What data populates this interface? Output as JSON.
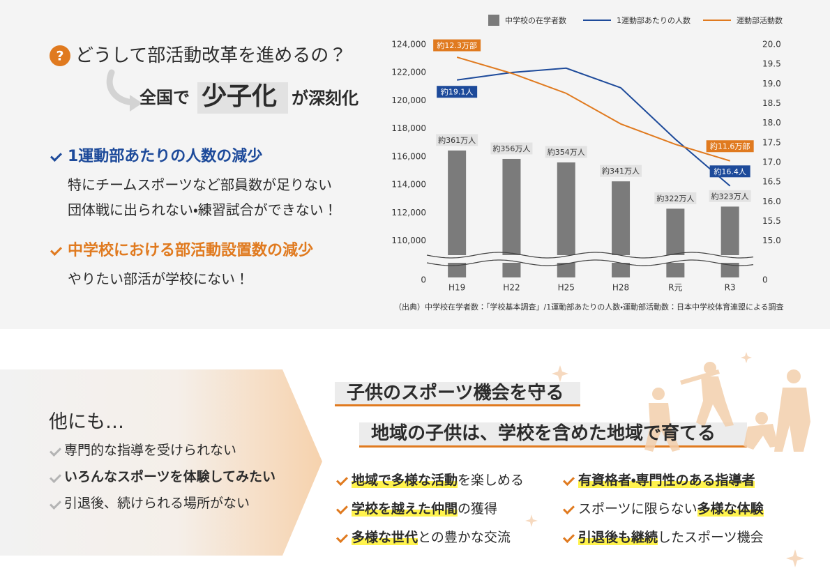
{
  "header": {
    "question_mark": "?",
    "question": "どうして部活動改革を進めるの？",
    "headline": {
      "before": "全国で",
      "emphasis": "少子化",
      "after": "が深刻化"
    }
  },
  "reasons": [
    {
      "title": "1運動部あたりの人数の減少",
      "color": "#1d4a9a",
      "lines": [
        "特にチームスポーツなど部員数が足りない",
        "団体戦に出られない・練習試合ができない！"
      ]
    },
    {
      "title": "中学校における部活動設置数の減少",
      "color": "#e07a1f",
      "lines": [
        "やりたい部活が学校にない！"
      ]
    }
  ],
  "chart_data": {
    "type": "bar",
    "categories": [
      "H19",
      "H22",
      "H25",
      "H28",
      "R元",
      "R3"
    ],
    "series": [
      {
        "name": "中学校の在学者数",
        "type": "bar",
        "color": "#7b7b7b",
        "values": [
          116450,
          115850,
          115600,
          114250,
          112300,
          112450
        ],
        "annotations": [
          "約361万人",
          "約356万人",
          "約354万人",
          "約341万人",
          "約322万人",
          "約323万人"
        ]
      },
      {
        "name": "1運動部あたりの人数",
        "type": "line",
        "color": "#1d4a9a",
        "axis": "y2",
        "values": [
          19.1,
          19.29,
          19.4,
          18.9,
          17.59,
          16.4
        ],
        "value_labels": [
          "約19.1人",
          null,
          null,
          null,
          null,
          "約16.4人"
        ]
      },
      {
        "name": "運動部活動数",
        "type": "line",
        "color": "#e07a1f",
        "axis": "y2",
        "values": [
          19.68,
          19.27,
          18.76,
          17.98,
          17.46,
          17.04
        ],
        "annotations": [
          "約12.3万部",
          null,
          null,
          null,
          null,
          "約11.6万部"
        ]
      }
    ],
    "ylim": [
      107200,
      124000
    ],
    "yticks": [
      {
        "value": 0,
        "label": "0"
      },
      {
        "value": 110000,
        "label": "110,000"
      },
      {
        "value": 112000,
        "label": "112,000"
      },
      {
        "value": 114000,
        "label": "114,000"
      },
      {
        "value": 116000,
        "label": "116,000"
      },
      {
        "value": 118000,
        "label": "118,000"
      },
      {
        "value": 120000,
        "label": "120,000"
      },
      {
        "value": 122000,
        "label": "122,000"
      },
      {
        "value": 124000,
        "label": "124,000"
      }
    ],
    "y2lim": [
      14.0,
      20.0
    ],
    "y2ticks": [
      0,
      {
        "value": 15,
        "label": "15.0"
      },
      15.5,
      {
        "value": 16,
        "label": "16.0"
      },
      16.5,
      {
        "value": 17,
        "label": "17.0"
      },
      17.5,
      {
        "value": 18,
        "label": "18.0"
      },
      18.5,
      {
        "value": 19,
        "label": "19.0"
      },
      19.5,
      {
        "value": 20,
        "label": "20.0"
      }
    ],
    "axis_break": true,
    "grid": false,
    "legend": "top",
    "source": "（出典）中学校在学者数：「学校基本調査」/1運動部あたりの人数・運動部活動数：日本中学校体育連盟による調査"
  },
  "others": {
    "title": "他にも…",
    "items": [
      {
        "text": "専門的な指導を受けられない",
        "bold": false
      },
      {
        "text": "いろんなスポーツを体験してみたい",
        "bold": true
      },
      {
        "text": "引退後、続けられる場所がない",
        "bold": false
      }
    ]
  },
  "goals": {
    "titles": [
      "子供のスポーツ機会を守る",
      "地域の子供は、学校を含めた地域で育てる"
    ],
    "benefits": [
      [
        {
          "text": "地域で多様な活動",
          "highlight": true
        },
        {
          "text": "を楽しめる",
          "highlight": false
        }
      ],
      [
        {
          "text": "学校を越えた仲間",
          "highlight": true
        },
        {
          "text": "の獲得",
          "highlight": false
        }
      ],
      [
        {
          "text": "多様な世代",
          "highlight": true
        },
        {
          "text": "との豊かな交流",
          "highlight": false
        }
      ],
      [
        {
          "text": "有資格者・専門性のある指導者",
          "highlight": true
        }
      ],
      [
        {
          "text": "スポーツに限らない",
          "highlight": false
        },
        {
          "text": "多様な体験",
          "highlight": true
        }
      ],
      [
        {
          "text": "引退後も継続",
          "highlight": true
        },
        {
          "text": "したスポーツ機会",
          "highlight": false
        }
      ]
    ]
  }
}
